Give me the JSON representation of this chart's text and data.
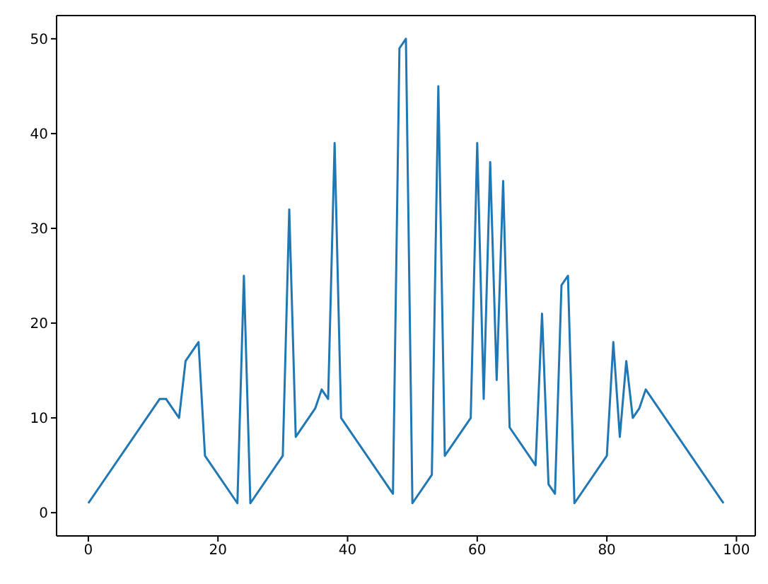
{
  "chart_data": {
    "type": "line",
    "x": [
      0,
      11,
      12,
      14,
      15,
      17,
      18,
      23,
      24,
      25,
      30,
      31,
      32,
      35,
      36,
      37,
      38,
      39,
      47,
      48,
      49,
      50,
      53,
      54,
      55,
      59,
      60,
      61,
      62,
      63,
      64,
      65,
      69,
      70,
      71,
      72,
      73,
      74,
      75,
      80,
      81,
      82,
      83,
      84,
      85,
      86,
      98
    ],
    "series": [
      {
        "color": "#1f77b4",
        "values": [
          1,
          12,
          12,
          10,
          16,
          18,
          6,
          1,
          25,
          1,
          6,
          32,
          8,
          11,
          13,
          12,
          39,
          10,
          2,
          49,
          50,
          1,
          4,
          45,
          6,
          10,
          39,
          12,
          37,
          14,
          35,
          9,
          5,
          21,
          3,
          2,
          24,
          25,
          1,
          6,
          18,
          8,
          16,
          10,
          11,
          13,
          1
        ]
      }
    ],
    "xlim": [
      -4.9,
      102.9
    ],
    "ylim": [
      -2.45,
      52.45
    ],
    "xticks": [
      0,
      20,
      40,
      60,
      80,
      100
    ],
    "yticks": [
      0,
      10,
      20,
      30,
      40,
      50
    ],
    "grid": false,
    "legend": false,
    "marker": "none",
    "line_style": "solid"
  }
}
